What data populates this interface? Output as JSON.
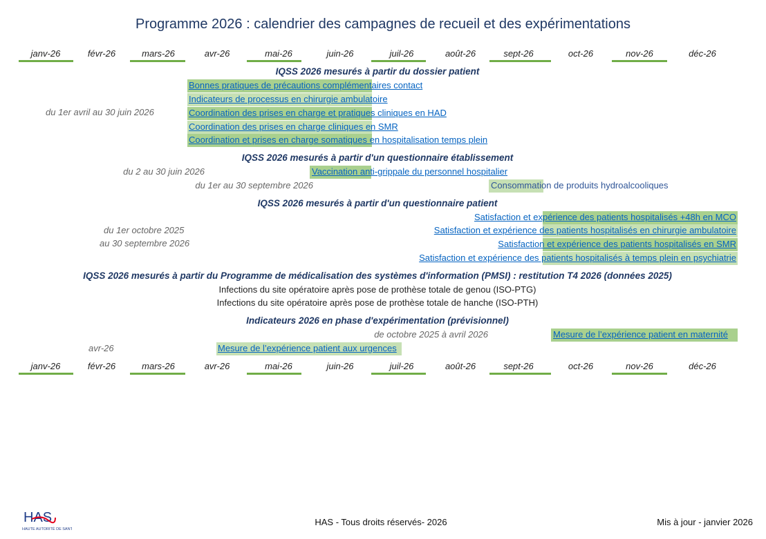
{
  "title": "Programme 2026 : calendrier des campagnes de recueil et des expérimentations",
  "months": [
    "janv-26",
    "févr-26",
    "mars-26",
    "avr-26",
    "mai-26",
    "juin-26",
    "juil-26",
    "août-26",
    "sept-26",
    "oct-26",
    "nov-26",
    "déc-26"
  ],
  "sections": [
    {
      "title": "IQSS 2026 mesurés à partir du dossier patient",
      "period": "du 1er avril au 30 juin 2026",
      "items": [
        "Bonnes pratiques de précautions complémentaires contact",
        "Indicateurs de processus en chirurgie ambulatoire",
        "Coordination des prises en charge et pratiques cliniques en HAD",
        "Coordination des prises en charge cliniques en SMR",
        "Coordination et prises en charge somatiques en hospitalisation temps plein"
      ]
    },
    {
      "title": "IQSS 2026 mesurés à partir d'un questionnaire établissement",
      "items": [
        {
          "period": "du 2 au 30 juin 2026",
          "label": "Vaccination anti-grippale du personnel hospitalier"
        },
        {
          "period": "du 1er au 30 septembre 2026",
          "label": "Consommation de produits hydroalcooliques"
        }
      ]
    },
    {
      "title": "IQSS 2026 mesurés à partir d'un questionnaire patient",
      "period_line1": "du 1er octobre 2025",
      "period_line2": "au 30 septembre 2026",
      "items": [
        "Satisfaction et expérience des patients hospitalisés +48h en MCO",
        "Satisfaction et expérience des patients hospitalisés en chirurgie ambulatoire",
        "Satisfaction et expérience des patients hospitalisés en SMR",
        "Satisfaction et expérience des patients hospitalisés à temps plein en psychiatrie"
      ]
    },
    {
      "title": "IQSS 2026 mesurés à partir du Programme de médicalisation des systèmes d'information (PMSI) : restitution T4 2026  (données 2025)",
      "items": [
        "Infections du site opératoire après pose de prothèse totale de genou (ISO-PTG)",
        "Infections du site opératoire après pose de prothèse totale de hanche (ISO-PTH)"
      ]
    },
    {
      "title": "Indicateurs 2026 en phase d'expérimentation (prévisionnel)",
      "items": [
        {
          "period": "de octobre 2025 à avril 2026",
          "label": "Mesure de l’expérience patient en maternité"
        },
        {
          "period": "avr-26",
          "label": "Mesure de l’expérience patient aux urgences"
        }
      ]
    }
  ],
  "footer": {
    "logo": "HAS",
    "logo_sub": "HAUTE AUTORITÉ DE SANTÉ",
    "copyright": "HAS - Tous droits réservés- 2026",
    "updated": "Mis à jour - janvier 2026"
  },
  "colors": {
    "title": "#1f3864",
    "bar_dark": "#a9d08e",
    "bar_light": "#c6e0b4",
    "link": "#0563c1",
    "month_line": "#70ad47"
  }
}
